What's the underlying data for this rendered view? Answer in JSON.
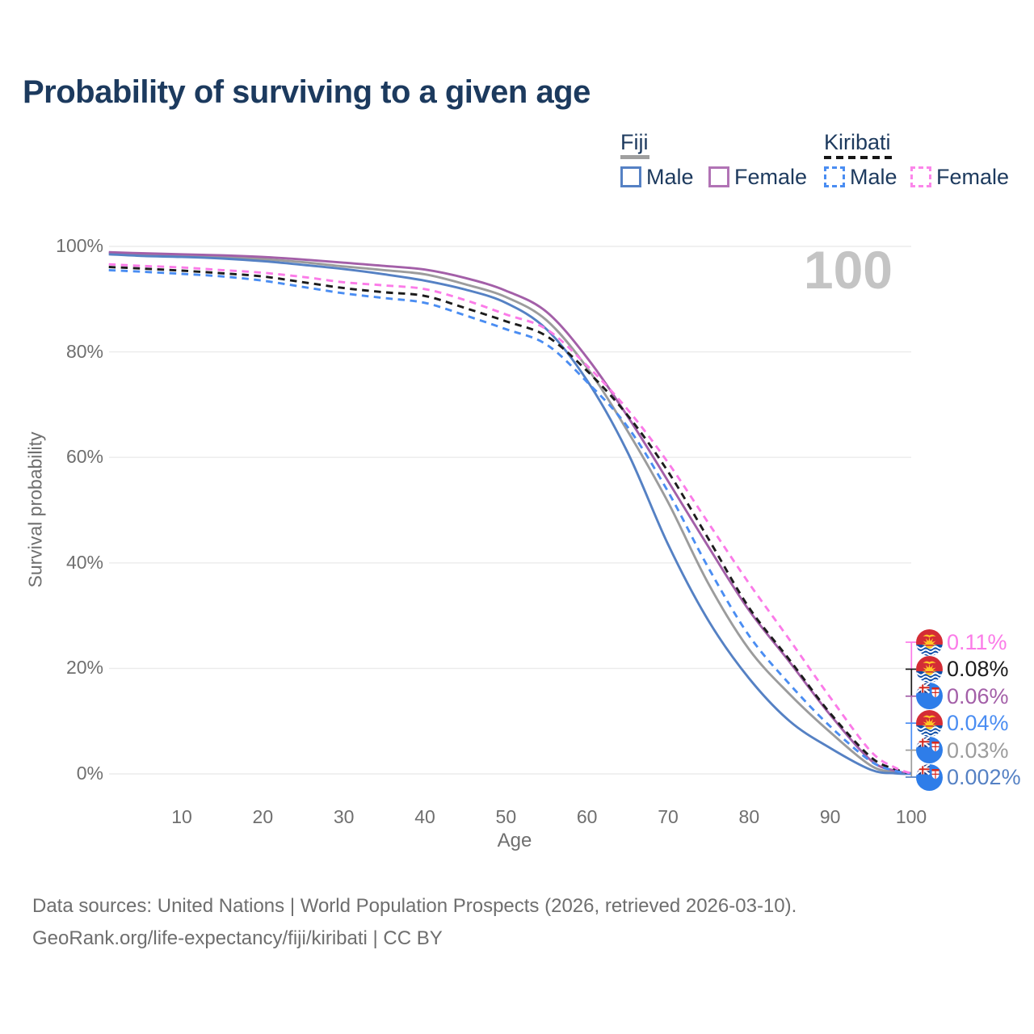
{
  "title": "Probability of surviving to a given age",
  "watermark": "100",
  "legend": {
    "fiji": {
      "label": "Fiji",
      "male": "Male",
      "female": "Female"
    },
    "kiribati": {
      "label": "Kiribati",
      "male": "Male",
      "female": "Female"
    }
  },
  "footer": {
    "line1": "Data sources: United Nations | World Population Prospects (2026, retrieved 2026-03-10).",
    "line2": "GeoRank.org/life-expectancy/fiji/kiribati | CC BY"
  },
  "chart_data": {
    "type": "line",
    "title": "Probability of surviving to a given age",
    "xlabel": "Age",
    "ylabel": "Survival probability",
    "xlim": [
      1,
      100
    ],
    "ylim": [
      0,
      100
    ],
    "grid": "horizontal",
    "legend_position": "top-right",
    "hover_age": 100,
    "x_ticks": [
      10,
      20,
      30,
      40,
      50,
      60,
      70,
      80,
      90,
      100
    ],
    "y_ticks": [
      {
        "value": 0,
        "label": "0%"
      },
      {
        "value": 20,
        "label": "20%"
      },
      {
        "value": 40,
        "label": "40%"
      },
      {
        "value": 60,
        "label": "60%"
      },
      {
        "value": 80,
        "label": "80%"
      },
      {
        "value": 100,
        "label": "100%"
      }
    ],
    "x": [
      1,
      5,
      10,
      15,
      20,
      25,
      30,
      35,
      40,
      45,
      50,
      55,
      60,
      65,
      70,
      75,
      80,
      85,
      90,
      95,
      98,
      100
    ],
    "series": [
      {
        "name": "Fiji Both sexes",
        "country": "Fiji",
        "sex": "Both",
        "style": "solid",
        "color": "#9c9c9c",
        "end_value": "0.03%",
        "values": [
          98.7,
          98.5,
          98.3,
          98.0,
          97.6,
          97.0,
          96.2,
          95.5,
          94.7,
          92.8,
          90.4,
          86.0,
          77.0,
          65.0,
          51.5,
          36.0,
          23.6,
          15.1,
          7.9,
          1.6,
          0.35,
          0.03
        ]
      },
      {
        "name": "Fiji Female",
        "country": "Fiji",
        "sex": "Female",
        "style": "solid",
        "color": "#a35fa8",
        "end_value": "0.06%",
        "values": [
          98.9,
          98.7,
          98.5,
          98.3,
          98.0,
          97.5,
          96.9,
          96.3,
          95.6,
          94.0,
          91.6,
          87.6,
          78.9,
          67.8,
          55.5,
          43.0,
          31.0,
          21.2,
          11.2,
          2.6,
          0.6,
          0.06
        ]
      },
      {
        "name": "Fiji Male",
        "country": "Fiji",
        "sex": "Male",
        "style": "solid",
        "color": "#5581c4",
        "end_value": "0.002%",
        "values": [
          98.5,
          98.2,
          98.0,
          97.7,
          97.2,
          96.5,
          95.7,
          94.7,
          93.5,
          91.8,
          89.3,
          84.3,
          74.6,
          61.0,
          43.5,
          29.0,
          18.1,
          10.0,
          4.9,
          0.8,
          0.1,
          0.002
        ]
      },
      {
        "name": "Kiribati Both sexes",
        "country": "Kiribati",
        "sex": "Both",
        "style": "dashed",
        "color": "#1c1c1c",
        "end_value": "0.08%",
        "values": [
          96.1,
          95.8,
          95.4,
          94.9,
          94.3,
          93.2,
          92.1,
          91.3,
          90.6,
          88.3,
          85.8,
          83.0,
          76.4,
          68.0,
          57.3,
          44.5,
          31.5,
          21.6,
          11.5,
          3.2,
          0.9,
          0.08
        ]
      },
      {
        "name": "Kiribati Male",
        "country": "Kiribati",
        "sex": "Male",
        "style": "dashed",
        "color": "#4a8df2",
        "end_value": "0.04%",
        "values": [
          95.5,
          95.2,
          94.8,
          94.3,
          93.5,
          92.3,
          91.1,
          90.2,
          89.3,
          86.9,
          84.3,
          81.4,
          74.3,
          65.8,
          53.5,
          39.0,
          26.2,
          17.0,
          9.0,
          2.4,
          0.6,
          0.04
        ]
      },
      {
        "name": "Kiribati Female",
        "country": "Kiribati",
        "sex": "Female",
        "style": "dashed",
        "color": "#fb7be8",
        "end_value": "0.11%",
        "values": [
          96.6,
          96.3,
          96.0,
          95.5,
          95.0,
          94.2,
          93.2,
          92.6,
          91.9,
          89.8,
          87.1,
          84.3,
          77.4,
          69.1,
          59.0,
          47.5,
          36.1,
          25.4,
          14.5,
          4.3,
          1.2,
          0.11
        ]
      }
    ],
    "end_labels": [
      {
        "text": "0.11%",
        "flag": "kiribati",
        "color": "#fb7be8"
      },
      {
        "text": "0.08%",
        "flag": "kiribati",
        "color": "#1c1c1c"
      },
      {
        "text": "0.06%",
        "flag": "fiji",
        "color": "#a35fa8"
      },
      {
        "text": "0.04%",
        "flag": "kiribati",
        "color": "#4a8df2"
      },
      {
        "text": "0.03%",
        "flag": "fiji",
        "color": "#9c9c9c"
      },
      {
        "text": "0.002%",
        "flag": "fiji",
        "color": "#5581c4"
      }
    ],
    "swatch_colors": {
      "fiji_line": "#9f9f9f",
      "kiribati_line": "#161616",
      "fiji_male": "#5581c4",
      "fiji_female": "#b173b5",
      "kiribati_male": "#4a8df2",
      "kiribati_female": "#fb86ea"
    }
  }
}
